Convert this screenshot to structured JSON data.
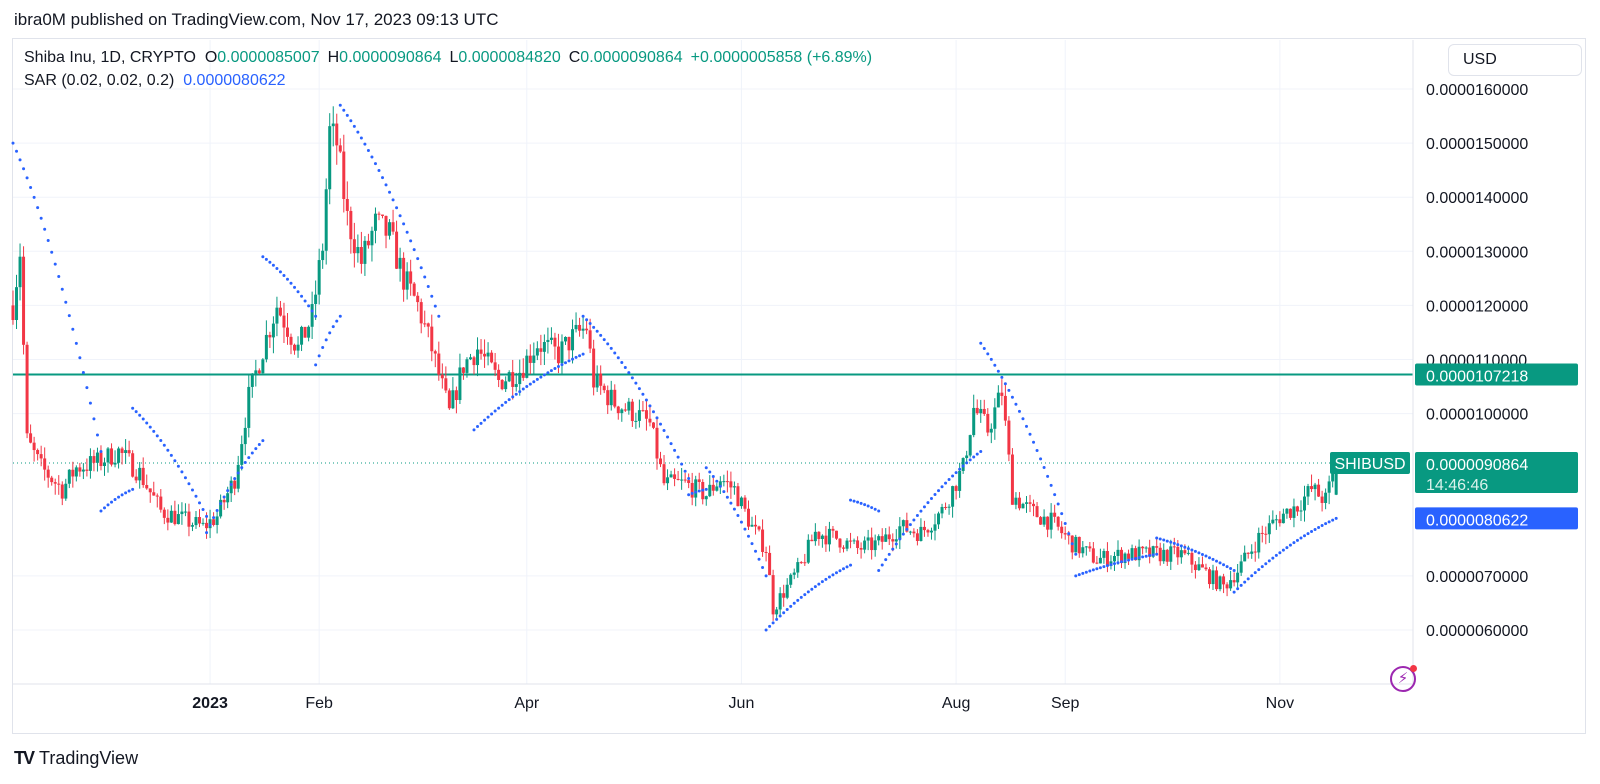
{
  "header": {
    "publisher_line": "ibra0M published on TradingView.com, Nov 17, 2023 09:13 UTC"
  },
  "legend": {
    "symbol": "Shiba Inu, 1D, CRYPTO",
    "o_label": "O",
    "o_value": "0.0000085007",
    "h_label": "H",
    "h_value": "0.0000090864",
    "l_label": "L",
    "l_value": "0.0000084820",
    "c_label": "C",
    "c_value": "0.0000090864",
    "change": "+0.0000005858 (+6.89%)",
    "sar_label": "SAR (0.02, 0.02, 0.2)",
    "sar_value": "0.0000080622"
  },
  "currency": "USD",
  "footer": {
    "brand": "TradingView"
  },
  "colors": {
    "up": "#089981",
    "down": "#f23645",
    "sar": "#2962ff",
    "level": "#089981",
    "grid": "#f0f3fa"
  },
  "chart_data": {
    "type": "candlestick",
    "symbol": "SHIBUSD",
    "y_axis": {
      "min": 5.5e-06,
      "max": 1.68e-05,
      "ticks": [
        "0.0000160000",
        "0.0000150000",
        "0.0000140000",
        "0.0000130000",
        "0.0000120000",
        "0.0000110000",
        "0.0000100000",
        "0.0000070000",
        "0.0000060000"
      ],
      "tick_values": [
        1.6e-05,
        1.5e-05,
        1.4e-05,
        1.3e-05,
        1.2e-05,
        1.1e-05,
        1e-05,
        7e-06,
        6e-06
      ]
    },
    "x_axis": {
      "start": "2022-11-06",
      "end": "2023-12-04",
      "labels": [
        {
          "date": "2023-01-01",
          "text": "2023",
          "bold": true
        },
        {
          "date": "2023-02-01",
          "text": "Feb"
        },
        {
          "date": "2023-04-01",
          "text": "Apr"
        },
        {
          "date": "2023-06-01",
          "text": "Jun"
        },
        {
          "date": "2023-08-01",
          "text": "Aug"
        },
        {
          "date": "2023-09-01",
          "text": "Sep"
        },
        {
          "date": "2023-11-01",
          "text": "Nov"
        }
      ]
    },
    "horizontal_level": {
      "value": 1.07218e-05,
      "label": "0.0000107218"
    },
    "last_price": {
      "value": 9.0864e-06,
      "label": "0.0000090864",
      "countdown": "14:46:46",
      "symbol_tag": "SHIBUSD"
    },
    "sar_last": {
      "value": 8.0622e-06,
      "label": "0.0000080622"
    },
    "price_path": [
      [
        "2022-11-06",
        1.2e-05
      ],
      [
        "2022-11-08",
        1.3e-05
      ],
      [
        "2022-11-10",
        9.5e-06
      ],
      [
        "2022-11-14",
        9e-06
      ],
      [
        "2022-11-20",
        8.6e-06
      ],
      [
        "2022-11-24",
        9e-06
      ],
      [
        "2022-11-30",
        9.1e-06
      ],
      [
        "2022-12-06",
        9.3e-06
      ],
      [
        "2022-12-12",
        8.9e-06
      ],
      [
        "2022-12-18",
        8.2e-06
      ],
      [
        "2022-12-26",
        8e-06
      ],
      [
        "2022-12-30",
        7.9e-06
      ],
      [
        "2023-01-03",
        8.1e-06
      ],
      [
        "2023-01-08",
        8.8e-06
      ],
      [
        "2023-01-12",
        1.03e-05
      ],
      [
        "2023-01-16",
        1.12e-05
      ],
      [
        "2023-01-20",
        1.2e-05
      ],
      [
        "2023-01-26",
        1.12e-05
      ],
      [
        "2023-01-30",
        1.18e-05
      ],
      [
        "2023-02-02",
        1.31e-05
      ],
      [
        "2023-02-04",
        1.52e-05
      ],
      [
        "2023-02-06",
        1.5e-05
      ],
      [
        "2023-02-09",
        1.36e-05
      ],
      [
        "2023-02-13",
        1.28e-05
      ],
      [
        "2023-02-17",
        1.35e-05
      ],
      [
        "2023-02-21",
        1.33e-05
      ],
      [
        "2023-02-25",
        1.25e-05
      ],
      [
        "2023-03-01",
        1.2e-05
      ],
      [
        "2023-03-05",
        1.12e-05
      ],
      [
        "2023-03-10",
        1e-05
      ],
      [
        "2023-03-14",
        1.09e-05
      ],
      [
        "2023-03-18",
        1.12e-05
      ],
      [
        "2023-03-24",
        1.06e-05
      ],
      [
        "2023-03-30",
        1.08e-05
      ],
      [
        "2023-04-04",
        1.13e-05
      ],
      [
        "2023-04-10",
        1.11e-05
      ],
      [
        "2023-04-14",
        1.14e-05
      ],
      [
        "2023-04-18",
        1.16e-05
      ],
      [
        "2023-04-20",
        1.06e-05
      ],
      [
        "2023-04-26",
        1.02e-05
      ],
      [
        "2023-05-02",
        1e-05
      ],
      [
        "2023-05-06",
        9.8e-06
      ],
      [
        "2023-05-10",
        8.7e-06
      ],
      [
        "2023-05-16",
        8.7e-06
      ],
      [
        "2023-05-22",
        8.5e-06
      ],
      [
        "2023-05-26",
        8.8e-06
      ],
      [
        "2023-05-30",
        8.6e-06
      ],
      [
        "2023-06-04",
        7.9e-06
      ],
      [
        "2023-06-08",
        7.5e-06
      ],
      [
        "2023-06-10",
        6.4e-06
      ],
      [
        "2023-06-14",
        6.8e-06
      ],
      [
        "2023-06-18",
        7.2e-06
      ],
      [
        "2023-06-22",
        7.8e-06
      ],
      [
        "2023-06-28",
        7.7e-06
      ],
      [
        "2023-07-04",
        7.5e-06
      ],
      [
        "2023-07-10",
        7.6e-06
      ],
      [
        "2023-07-16",
        7.9e-06
      ],
      [
        "2023-07-22",
        7.8e-06
      ],
      [
        "2023-07-28",
        8.2e-06
      ],
      [
        "2023-08-03",
        9e-06
      ],
      [
        "2023-08-06",
        1.01e-05
      ],
      [
        "2023-08-10",
        9.7e-06
      ],
      [
        "2023-08-14",
        1.04e-05
      ],
      [
        "2023-08-17",
        8.5e-06
      ],
      [
        "2023-08-22",
        8.2e-06
      ],
      [
        "2023-08-28",
        8e-06
      ],
      [
        "2023-09-03",
        7.6e-06
      ],
      [
        "2023-09-10",
        7.3e-06
      ],
      [
        "2023-09-18",
        7.4e-06
      ],
      [
        "2023-09-26",
        7.4e-06
      ],
      [
        "2023-10-04",
        7.4e-06
      ],
      [
        "2023-10-10",
        7.1e-06
      ],
      [
        "2023-10-16",
        6.8e-06
      ],
      [
        "2023-10-20",
        7.1e-06
      ],
      [
        "2023-10-26",
        7.7e-06
      ],
      [
        "2023-11-01",
        8.1e-06
      ],
      [
        "2023-11-06",
        8.3e-06
      ],
      [
        "2023-11-10",
        8.6e-06
      ],
      [
        "2023-11-14",
        8.4e-06
      ],
      [
        "2023-11-17",
        9.0864e-06
      ]
    ],
    "sar_segments": [
      {
        "side": "above",
        "start": "2022-11-06",
        "end": "2022-12-01",
        "v0": 1.5e-05,
        "v1": 9.3e-06
      },
      {
        "side": "below",
        "start": "2022-12-01",
        "end": "2022-12-10",
        "v0": 8.2e-06,
        "v1": 8.6e-06
      },
      {
        "side": "above",
        "start": "2022-12-10",
        "end": "2022-12-31",
        "v0": 1.01e-05,
        "v1": 8.1e-06
      },
      {
        "side": "below",
        "start": "2022-12-31",
        "end": "2023-01-16",
        "v0": 7.8e-06,
        "v1": 9.5e-06
      },
      {
        "side": "above",
        "start": "2023-01-16",
        "end": "2023-01-31",
        "v0": 1.29e-05,
        "v1": 1.18e-05
      },
      {
        "side": "below",
        "start": "2023-01-31",
        "end": "2023-02-07",
        "v0": 1.09e-05,
        "v1": 1.18e-05
      },
      {
        "side": "above",
        "start": "2023-02-07",
        "end": "2023-03-07",
        "v0": 1.57e-05,
        "v1": 1.18e-05
      },
      {
        "side": "below",
        "start": "2023-03-17",
        "end": "2023-04-17",
        "v0": 9.7e-06,
        "v1": 1.11e-05
      },
      {
        "side": "above",
        "start": "2023-04-17",
        "end": "2023-05-17",
        "v0": 1.18e-05,
        "v1": 8.8e-06
      },
      {
        "side": "below",
        "start": "2023-05-17",
        "end": "2023-05-22",
        "v0": 8.5e-06,
        "v1": 8.6e-06
      },
      {
        "side": "above",
        "start": "2023-05-22",
        "end": "2023-06-08",
        "v0": 9e-06,
        "v1": 7e-06
      },
      {
        "side": "below",
        "start": "2023-06-08",
        "end": "2023-07-02",
        "v0": 6e-06,
        "v1": 7.2e-06
      },
      {
        "side": "above",
        "start": "2023-07-02",
        "end": "2023-07-10",
        "v0": 8.4e-06,
        "v1": 8.2e-06
      },
      {
        "side": "below",
        "start": "2023-07-10",
        "end": "2023-08-08",
        "v0": 7.1e-06,
        "v1": 9.3e-06
      },
      {
        "side": "above",
        "start": "2023-08-08",
        "end": "2023-09-04",
        "v0": 1.13e-05,
        "v1": 7.4e-06
      },
      {
        "side": "below",
        "start": "2023-09-04",
        "end": "2023-09-27",
        "v0": 7e-06,
        "v1": 7.4e-06
      },
      {
        "side": "above",
        "start": "2023-09-27",
        "end": "2023-10-19",
        "v0": 7.7e-06,
        "v1": 7.1e-06
      },
      {
        "side": "below",
        "start": "2023-10-19",
        "end": "2023-11-17",
        "v0": 6.7e-06,
        "v1": 8.0622e-06
      }
    ]
  }
}
